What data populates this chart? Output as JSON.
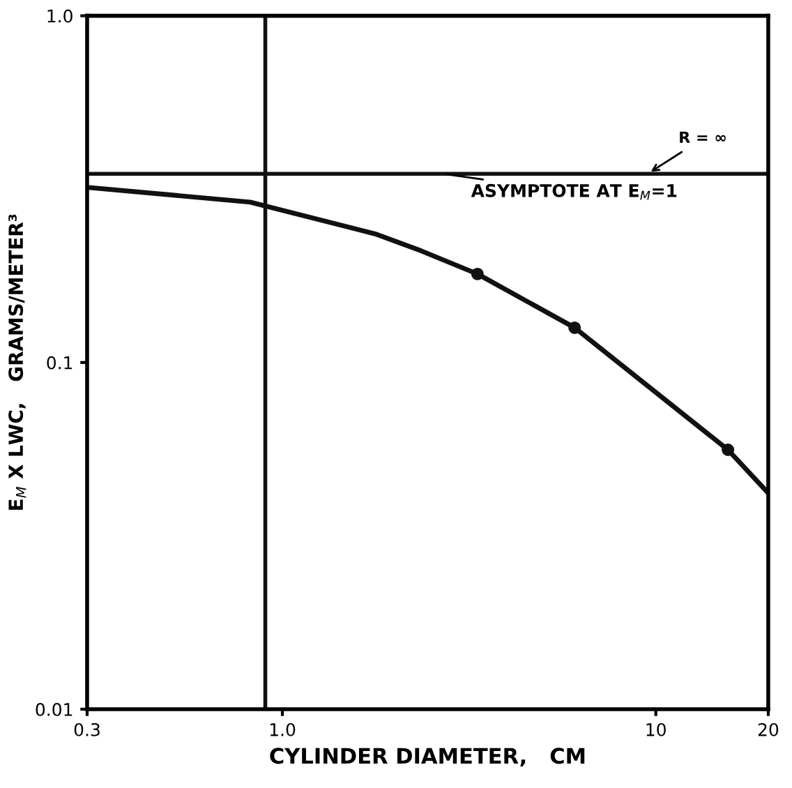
{
  "chart_data": {
    "type": "line",
    "xlabel": "CYLINDER DIAMETER,   CM",
    "ylabel": "E$_{M}$ X LWC,   GRAMS/METER³",
    "log": "xy",
    "xlim": [
      0.3,
      20
    ],
    "xticks": [
      {
        "value": 0.3,
        "label": "0.3"
      },
      {
        "value": 1,
        "label": "1.0"
      },
      10,
      20
    ],
    "ylim": [
      0.01,
      1
    ],
    "yticks": [
      0.01,
      0.1,
      {
        "value": 1,
        "label": "1.0"
      }
    ],
    "series": [
      {
        "color": "#111111",
        "marker": "none",
        "x": [
          0.3,
          0.82,
          1.77,
          2.35,
          3.33,
          6.06,
          15.6,
          20
        ],
        "values": [
          0.32,
          0.29,
          0.235,
          0.21,
          0.18,
          0.126,
          0.056,
          0.042
        ]
      },
      {
        "type": "scatter",
        "color": "#111111",
        "marker": "circle",
        "x": [
          3.33,
          6.06,
          15.6
        ],
        "values": [
          0.18,
          0.126,
          0.056
        ]
      }
    ],
    "ref_lines": [
      {
        "axis": "y",
        "value": 0.35,
        "color": "#111111"
      },
      {
        "axis": "x",
        "value": 0.9,
        "color": "#111111"
      }
    ],
    "annotations": [
      {
        "text": "ASYMPTOTE AT E$_{M}$=1",
        "x": 2.7,
        "y": 0.35
      },
      {
        "text": "R = ∞",
        "x": 9.5,
        "y": 0.35
      }
    ],
    "grid": false
  }
}
